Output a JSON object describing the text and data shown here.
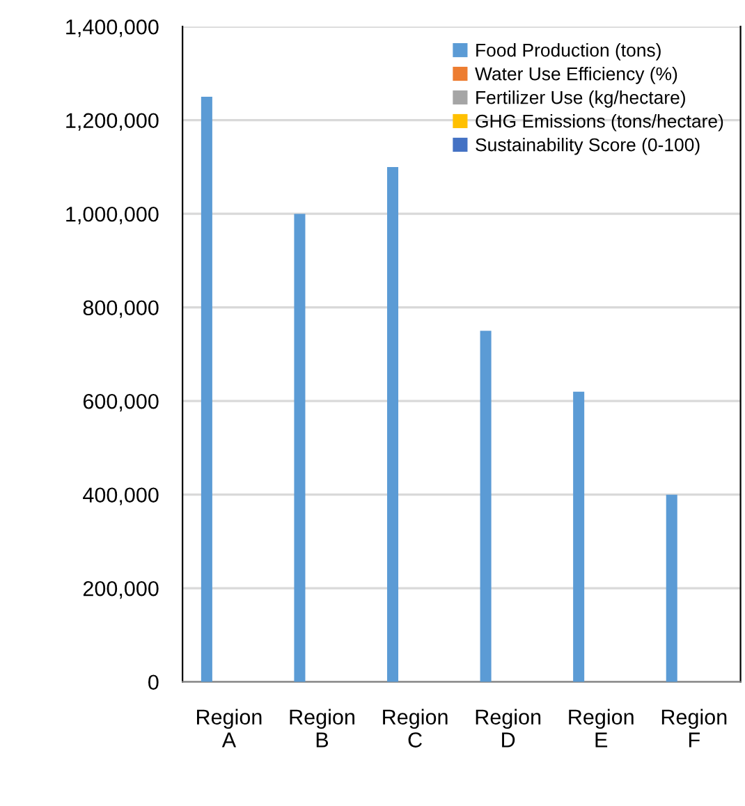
{
  "chart_data": {
    "type": "bar",
    "categories": [
      "Region A",
      "Region B",
      "Region C",
      "Region D",
      "Region E",
      "Region F"
    ],
    "series": [
      {
        "name": "Food Production (tons)",
        "color": "#5b9bd5",
        "values": [
          1250000,
          1000000,
          1100000,
          750000,
          620000,
          400000
        ]
      },
      {
        "name": "Water Use Efficiency (%)",
        "color": "#ed7d31",
        "values": [
          0,
          0,
          0,
          0,
          0,
          0
        ]
      },
      {
        "name": "Fertilizer Use (kg/hectare)",
        "color": "#a5a5a5",
        "values": [
          0,
          0,
          0,
          0,
          0,
          0
        ]
      },
      {
        "name": "GHG Emissions (tons/hectare)",
        "color": "#ffc000",
        "values": [
          0,
          0,
          0,
          0,
          0,
          0
        ]
      },
      {
        "name": "Sustainability Score (0-100)",
        "color": "#4472c4",
        "values": [
          0,
          0,
          0,
          0,
          0,
          0
        ]
      }
    ],
    "ylim": [
      0,
      1400000
    ],
    "yticks": [
      {
        "value": 0,
        "label": "0"
      },
      {
        "value": 200000,
        "label": "200,000"
      },
      {
        "value": 400000,
        "label": "400,000"
      },
      {
        "value": 600000,
        "label": "600,000"
      },
      {
        "value": 800000,
        "label": "800,000"
      },
      {
        "value": 1000000,
        "label": "1,000,000"
      },
      {
        "value": 1200000,
        "label": "1,200,000"
      },
      {
        "value": 1400000,
        "label": "1,400,000"
      }
    ],
    "grid": "y",
    "legend": "top right"
  }
}
